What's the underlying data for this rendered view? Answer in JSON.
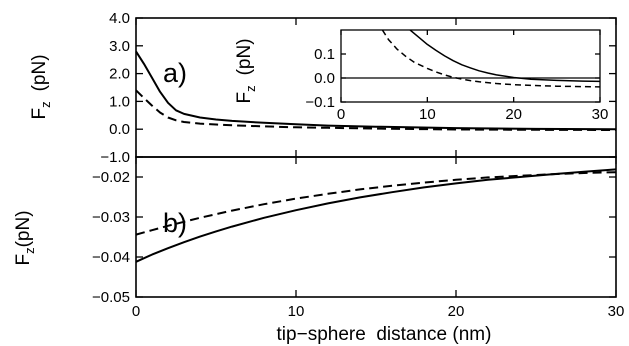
{
  "chart_data": [
    {
      "panel": "a",
      "type": "line",
      "panel_label": "a)",
      "ylabel": "F",
      "ylabel_sub": "z",
      "ylabel_unit": "(pN)",
      "xlim": [
        0,
        30
      ],
      "ylim": [
        -1.0,
        4.0
      ],
      "x_ticks": [
        0,
        10,
        20,
        30
      ],
      "y_ticks": [
        -1.0,
        0.0,
        1.0,
        2.0,
        3.0,
        4.0
      ],
      "y_tick_labels": [
        "−1.0",
        "0.0",
        "1.0",
        "2.0",
        "3.0",
        "4.0"
      ],
      "grid": false,
      "series": [
        {
          "style": "solid",
          "x": [
            0,
            0.5,
            1,
            1.5,
            2,
            2.5,
            3,
            4,
            5,
            6,
            8,
            10,
            12,
            15,
            20,
            25,
            30
          ],
          "y": [
            2.8,
            2.35,
            1.85,
            1.35,
            0.95,
            0.68,
            0.55,
            0.42,
            0.35,
            0.3,
            0.23,
            0.18,
            0.13,
            0.09,
            0.04,
            0.01,
            0.0
          ]
        },
        {
          "style": "dashed",
          "x": [
            0,
            0.5,
            1,
            1.5,
            2,
            2.5,
            3,
            4,
            5,
            6,
            8,
            10,
            12,
            15,
            20,
            25,
            30
          ],
          "y": [
            1.4,
            1.12,
            0.85,
            0.6,
            0.42,
            0.32,
            0.26,
            0.2,
            0.17,
            0.14,
            0.1,
            0.07,
            0.05,
            0.02,
            -0.01,
            -0.02,
            -0.03
          ]
        }
      ]
    },
    {
      "panel": "a-inset",
      "type": "line",
      "ylabel": "F",
      "ylabel_sub": "z",
      "ylabel_unit": "(pN)",
      "xlim": [
        0,
        30
      ],
      "ylim": [
        -0.1,
        0.2
      ],
      "x_ticks": [
        0,
        10,
        20,
        30
      ],
      "y_ticks": [
        -0.1,
        0.0,
        0.1
      ],
      "y_tick_labels": [
        "−0.1",
        "0.0",
        "0.1"
      ],
      "zero_line": true,
      "series": [
        {
          "style": "solid",
          "x": [
            8.0,
            9,
            10,
            11,
            12,
            13,
            14,
            15,
            16,
            17,
            18,
            20,
            22,
            25,
            28,
            30
          ],
          "y": [
            0.2,
            0.17,
            0.14,
            0.115,
            0.092,
            0.072,
            0.055,
            0.042,
            0.03,
            0.021,
            0.013,
            0.002,
            -0.005,
            -0.01,
            -0.013,
            -0.014
          ]
        },
        {
          "style": "dashed",
          "x": [
            4.8,
            5.5,
            6.5,
            7.5,
            8.5,
            10,
            11,
            12,
            13,
            14,
            15,
            16,
            18,
            20,
            22,
            25,
            28,
            30
          ],
          "y": [
            0.2,
            0.16,
            0.12,
            0.09,
            0.065,
            0.04,
            0.025,
            0.013,
            0.003,
            -0.005,
            -0.011,
            -0.016,
            -0.023,
            -0.028,
            -0.031,
            -0.034,
            -0.036,
            -0.037
          ]
        }
      ]
    },
    {
      "panel": "b",
      "type": "line",
      "panel_label": "b)",
      "ylabel": "F",
      "ylabel_sub": "z",
      "ylabel_unit": "(pN)",
      "xlabel": "tip−sphere  distance (nm)",
      "xlim": [
        0,
        30
      ],
      "ylim": [
        -0.05,
        -0.015
      ],
      "x_ticks": [
        0,
        10,
        20,
        30
      ],
      "y_ticks": [
        -0.05,
        -0.04,
        -0.03,
        -0.02
      ],
      "y_tick_labels": [
        "−0.05",
        "−0.04",
        "−0.03",
        "−0.02"
      ],
      "grid": false,
      "series": [
        {
          "style": "solid",
          "x": [
            0,
            1,
            2,
            3,
            4,
            5,
            6,
            8,
            10,
            12,
            14,
            16,
            18,
            20,
            22,
            24,
            26,
            28,
            30
          ],
          "y": [
            -0.0412,
            -0.0394,
            -0.0378,
            -0.0363,
            -0.0349,
            -0.0336,
            -0.0324,
            -0.0302,
            -0.0283,
            -0.0266,
            -0.0251,
            -0.0238,
            -0.0226,
            -0.0216,
            -0.0207,
            -0.02,
            -0.0193,
            -0.0187,
            -0.0181
          ]
        },
        {
          "style": "dashed",
          "x": [
            0,
            1,
            2,
            3,
            4,
            5,
            6,
            8,
            10,
            12,
            14,
            16,
            18,
            20,
            22,
            24,
            26,
            28,
            30
          ],
          "y": [
            -0.0344,
            -0.0333,
            -0.0322,
            -0.0312,
            -0.0302,
            -0.0293,
            -0.0284,
            -0.0268,
            -0.0254,
            -0.0242,
            -0.0231,
            -0.0222,
            -0.0214,
            -0.0207,
            -0.0201,
            -0.0197,
            -0.0193,
            -0.019,
            -0.0188
          ]
        }
      ]
    }
  ]
}
